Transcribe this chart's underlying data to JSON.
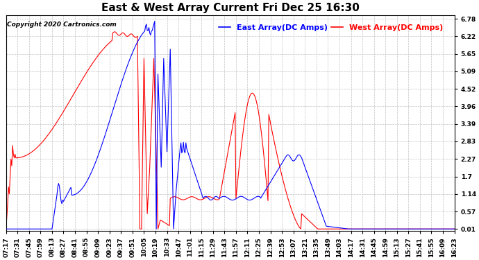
{
  "title": "East & West Array Current Fri Dec 25 16:30",
  "copyright": "Copyright 2020 Cartronics.com",
  "legend_east": "East Array(DC Amps)",
  "legend_west": "West Array(DC Amps)",
  "color_east": "blue",
  "color_west": "red",
  "yticks": [
    0.01,
    0.57,
    1.14,
    1.7,
    2.27,
    2.83,
    3.39,
    3.96,
    4.52,
    5.09,
    5.65,
    6.22,
    6.78
  ],
  "ylim": [
    -0.05,
    6.9
  ],
  "xtick_labels": [
    "07:17",
    "07:31",
    "07:45",
    "07:59",
    "08:13",
    "08:27",
    "08:41",
    "08:55",
    "09:09",
    "09:23",
    "09:37",
    "09:51",
    "10:05",
    "10:19",
    "10:33",
    "10:47",
    "11:01",
    "11:15",
    "11:29",
    "11:43",
    "11:57",
    "12:11",
    "12:25",
    "12:39",
    "12:53",
    "13:07",
    "13:21",
    "13:35",
    "13:49",
    "14:03",
    "14:17",
    "14:31",
    "14:45",
    "14:59",
    "15:13",
    "15:27",
    "15:41",
    "15:55",
    "16:09",
    "16:23"
  ],
  "background_color": "#ffffff",
  "grid_color": "#bbbbbb",
  "title_fontsize": 11,
  "tick_fontsize": 6.5,
  "legend_fontsize": 8
}
